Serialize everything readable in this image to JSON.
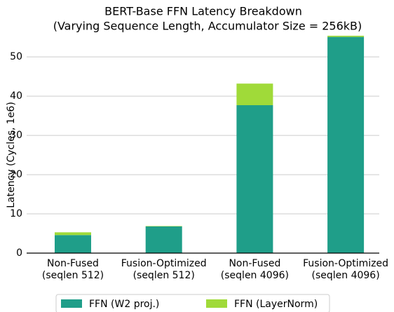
{
  "chart_data": {
    "type": "stacked-bar",
    "title": [
      "BERT-Base FFN Latency Breakdown",
      "(Varying Sequence Length, Accumulator Size = 256kB)"
    ],
    "y_label": "Latency (Cycles, 1e6)",
    "categories": [
      [
        "Non-Fused",
        "(seqlen 512)"
      ],
      [
        "Fusion-Optimized",
        "(seqlen 512)"
      ],
      [
        "Non-Fused",
        "(seqlen 4096)"
      ],
      [
        "Fusion-Optimized",
        "(seqlen 4096)"
      ]
    ],
    "series": [
      {
        "name": "FFN (W2 proj.)",
        "color": "#1f9e89",
        "values": [
          4.6,
          6.8,
          37.7,
          55.1
        ]
      },
      {
        "name": "FFN (LayerNorm)",
        "color": "#a0da39",
        "values": [
          0.7,
          0.1,
          5.5,
          0.3
        ]
      }
    ],
    "ylim": [
      0,
      57
    ],
    "yticks": [
      0,
      10,
      20,
      30,
      40,
      50
    ],
    "grid": true,
    "legend": "bottom"
  }
}
